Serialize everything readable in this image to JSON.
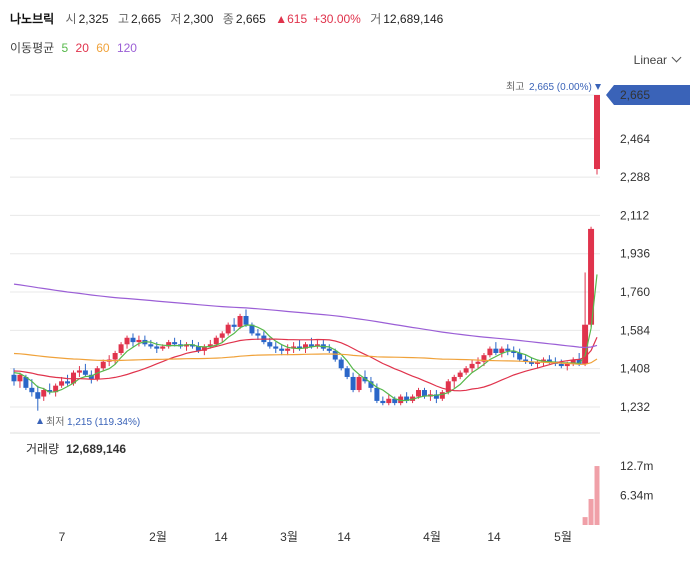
{
  "header": {
    "name": "나노브릭",
    "open_label": "시",
    "open": "2,325",
    "high_label": "고",
    "high": "2,665",
    "low_label": "저",
    "low": "2,300",
    "close_label": "종",
    "close": "2,665",
    "change_arrow": "▲",
    "change": "615",
    "change_pct": "+30.00%",
    "volume_label": "거",
    "volume": "12,689,146"
  },
  "ma_legend": {
    "label": "이동평균",
    "periods": [
      "5",
      "20",
      "60",
      "120"
    ],
    "colors": [
      "#56b84a",
      "#e0334c",
      "#f0a23a",
      "#9b5fd6"
    ]
  },
  "scale_selector": {
    "value": "Linear",
    "icon": "chevron-down-icon"
  },
  "colors": {
    "up": "#e0334c",
    "down": "#2a66c8",
    "price_tag": "#3a63b8",
    "grid": "#e8e8e8"
  },
  "chart_data": {
    "type": "candlestick",
    "price_axis_ticks": [
      2665,
      2464,
      2288,
      2112,
      1936,
      1760,
      1584,
      1408,
      1232
    ],
    "price_axis_labels": [
      "2,665",
      "2,464",
      "2,288",
      "2,112",
      "1,936",
      "1,760",
      "1,584",
      "1,408",
      "1,232"
    ],
    "current_price_tag": "2,665",
    "max_annotation": {
      "label": "최고",
      "value": "2,665",
      "pct": "(0.00%)"
    },
    "min_annotation": {
      "label": "최저",
      "value": "1,215",
      "pct": "(119.34%)"
    },
    "x_tick_labels": [
      "7",
      "2월",
      "14",
      "3월",
      "14",
      "4월",
      "14",
      "5월"
    ],
    "volume_title": "거래량",
    "volume_value": "12,689,146",
    "volume_axis_labels": [
      "12.7m",
      "6.34m"
    ],
    "volume_axis_values": [
      12700000,
      6340000
    ],
    "moving_averages": [
      5,
      20,
      60,
      120
    ],
    "candles": [
      [
        1380,
        1410,
        1330,
        1350
      ],
      [
        1350,
        1390,
        1320,
        1380
      ],
      [
        1370,
        1380,
        1310,
        1320
      ],
      [
        1320,
        1360,
        1280,
        1300
      ],
      [
        1300,
        1330,
        1215,
        1270
      ],
      [
        1280,
        1320,
        1260,
        1310
      ],
      [
        1310,
        1340,
        1290,
        1300
      ],
      [
        1300,
        1340,
        1280,
        1330
      ],
      [
        1330,
        1370,
        1320,
        1350
      ],
      [
        1350,
        1380,
        1330,
        1340
      ],
      [
        1340,
        1400,
        1330,
        1390
      ],
      [
        1390,
        1420,
        1370,
        1400
      ],
      [
        1400,
        1430,
        1370,
        1380
      ],
      [
        1380,
        1400,
        1340,
        1360
      ],
      [
        1360,
        1420,
        1350,
        1410
      ],
      [
        1410,
        1450,
        1400,
        1440
      ],
      [
        1440,
        1470,
        1420,
        1450
      ],
      [
        1450,
        1490,
        1430,
        1480
      ],
      [
        1480,
        1530,
        1470,
        1520
      ],
      [
        1520,
        1560,
        1500,
        1550
      ],
      [
        1550,
        1570,
        1510,
        1530
      ],
      [
        1530,
        1560,
        1510,
        1540
      ],
      [
        1540,
        1560,
        1510,
        1520
      ],
      [
        1520,
        1540,
        1500,
        1510
      ],
      [
        1510,
        1530,
        1480,
        1500
      ],
      [
        1500,
        1520,
        1490,
        1510
      ],
      [
        1510,
        1540,
        1500,
        1530
      ],
      [
        1530,
        1550,
        1510,
        1520
      ],
      [
        1520,
        1540,
        1500,
        1510
      ],
      [
        1510,
        1530,
        1490,
        1520
      ],
      [
        1520,
        1540,
        1500,
        1510
      ],
      [
        1510,
        1530,
        1480,
        1490
      ],
      [
        1490,
        1520,
        1470,
        1510
      ],
      [
        1510,
        1540,
        1500,
        1520
      ],
      [
        1520,
        1560,
        1510,
        1550
      ],
      [
        1550,
        1580,
        1530,
        1570
      ],
      [
        1570,
        1620,
        1560,
        1610
      ],
      [
        1610,
        1640,
        1580,
        1600
      ],
      [
        1600,
        1660,
        1590,
        1650
      ],
      [
        1650,
        1680,
        1600,
        1610
      ],
      [
        1610,
        1620,
        1560,
        1570
      ],
      [
        1570,
        1590,
        1540,
        1560
      ],
      [
        1560,
        1580,
        1520,
        1530
      ],
      [
        1530,
        1550,
        1500,
        1510
      ],
      [
        1510,
        1530,
        1480,
        1500
      ],
      [
        1500,
        1520,
        1470,
        1490
      ],
      [
        1490,
        1520,
        1470,
        1500
      ],
      [
        1500,
        1530,
        1480,
        1510
      ],
      [
        1510,
        1540,
        1490,
        1500
      ],
      [
        1500,
        1530,
        1480,
        1520
      ],
      [
        1520,
        1550,
        1500,
        1510
      ],
      [
        1510,
        1540,
        1500,
        1520
      ],
      [
        1520,
        1540,
        1490,
        1500
      ],
      [
        1500,
        1520,
        1480,
        1490
      ],
      [
        1490,
        1500,
        1440,
        1450
      ],
      [
        1450,
        1460,
        1400,
        1410
      ],
      [
        1410,
        1420,
        1360,
        1370
      ],
      [
        1370,
        1390,
        1300,
        1310
      ],
      [
        1310,
        1380,
        1300,
        1370
      ],
      [
        1370,
        1400,
        1340,
        1350
      ],
      [
        1350,
        1370,
        1300,
        1320
      ],
      [
        1320,
        1340,
        1250,
        1260
      ],
      [
        1260,
        1280,
        1240,
        1250
      ],
      [
        1250,
        1290,
        1240,
        1270
      ],
      [
        1270,
        1280,
        1240,
        1250
      ],
      [
        1250,
        1290,
        1240,
        1280
      ],
      [
        1280,
        1300,
        1250,
        1260
      ],
      [
        1260,
        1290,
        1250,
        1280
      ],
      [
        1280,
        1320,
        1270,
        1310
      ],
      [
        1310,
        1320,
        1270,
        1280
      ],
      [
        1280,
        1310,
        1260,
        1290
      ],
      [
        1290,
        1310,
        1250,
        1270
      ],
      [
        1270,
        1310,
        1260,
        1300
      ],
      [
        1300,
        1360,
        1290,
        1350
      ],
      [
        1350,
        1380,
        1320,
        1370
      ],
      [
        1370,
        1400,
        1360,
        1390
      ],
      [
        1390,
        1420,
        1380,
        1410
      ],
      [
        1410,
        1450,
        1390,
        1430
      ],
      [
        1430,
        1460,
        1410,
        1440
      ],
      [
        1440,
        1480,
        1420,
        1470
      ],
      [
        1470,
        1510,
        1460,
        1500
      ],
      [
        1500,
        1530,
        1470,
        1480
      ],
      [
        1480,
        1510,
        1460,
        1500
      ],
      [
        1500,
        1520,
        1470,
        1490
      ],
      [
        1490,
        1510,
        1460,
        1480
      ],
      [
        1480,
        1500,
        1440,
        1450
      ],
      [
        1450,
        1470,
        1430,
        1440
      ],
      [
        1440,
        1460,
        1420,
        1430
      ],
      [
        1430,
        1450,
        1410,
        1440
      ],
      [
        1440,
        1460,
        1420,
        1450
      ],
      [
        1450,
        1470,
        1430,
        1440
      ],
      [
        1440,
        1460,
        1420,
        1430
      ],
      [
        1430,
        1450,
        1410,
        1420
      ],
      [
        1420,
        1440,
        1400,
        1430
      ],
      [
        1430,
        1460,
        1420,
        1450
      ],
      [
        1450,
        1480,
        1420,
        1430
      ],
      [
        1430,
        1850,
        1420,
        1610
      ],
      [
        1610,
        2060,
        1600,
        2050
      ],
      [
        2325,
        2665,
        2300,
        2665
      ]
    ]
  }
}
